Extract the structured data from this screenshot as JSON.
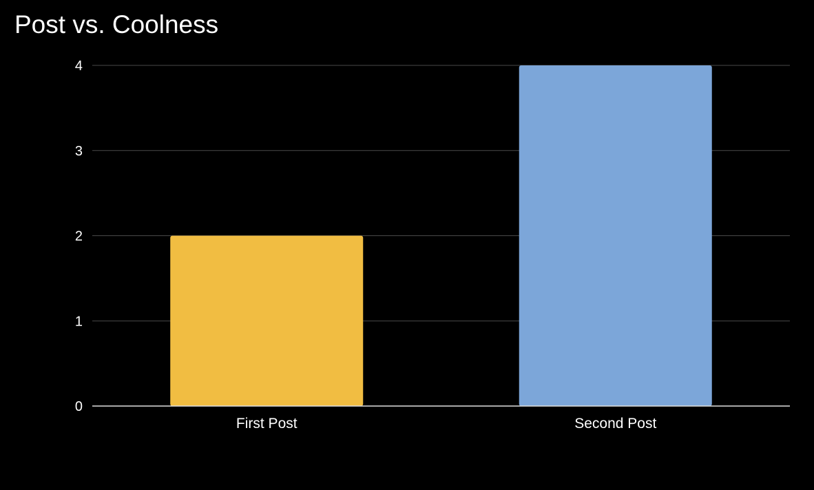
{
  "chart_data": {
    "type": "bar",
    "title": "Post vs. Coolness",
    "xlabel": "",
    "ylabel": "",
    "categories": [
      "First Post",
      "Second Post"
    ],
    "values": [
      2,
      4
    ],
    "colors": [
      "#f1bd42",
      "#7ca6d9"
    ],
    "ylim": [
      0,
      4
    ],
    "yticks": [
      "0",
      "1",
      "2",
      "3",
      "4"
    ],
    "grid": true,
    "legend": "none",
    "background": "#000000"
  }
}
